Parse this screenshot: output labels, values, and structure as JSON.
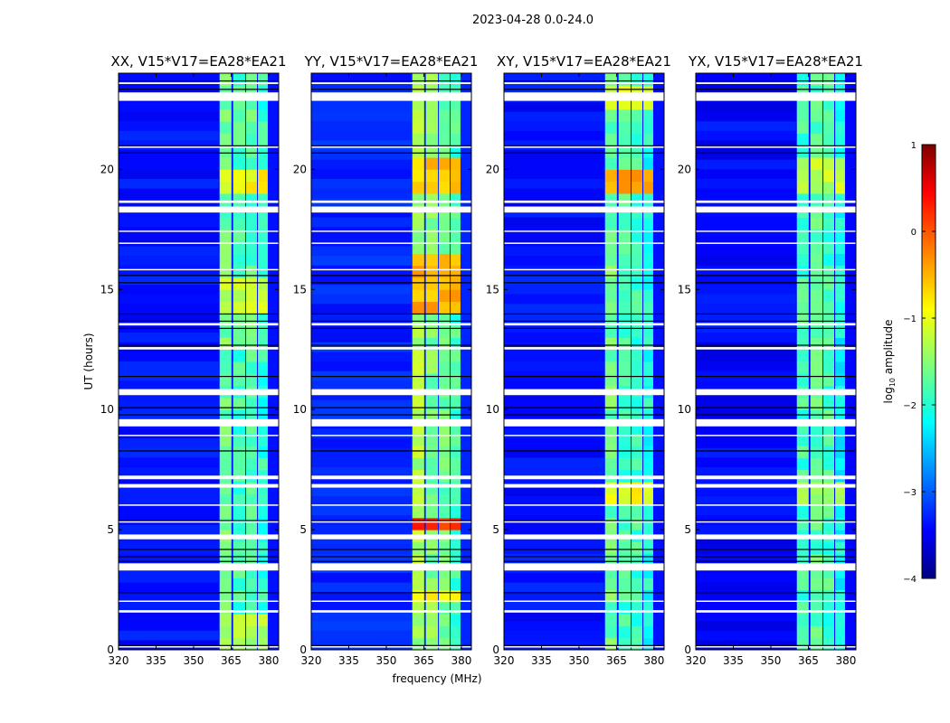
{
  "chart_data": {
    "type": "heatmap",
    "title": "2023-04-28 0.0-24.0",
    "xlabel": "frequency (MHz)",
    "ylabel": "UT (hours)",
    "xlim": [
      320,
      384
    ],
    "ylim": [
      0,
      24
    ],
    "xticks": [
      320,
      335,
      350,
      365,
      380
    ],
    "yticks": [
      0,
      5,
      10,
      15,
      20
    ],
    "panels": [
      {
        "title": "XX, V15*V17=EA28*EA21",
        "background": -3.3,
        "band_levels": [
          -1.6,
          -1.8,
          -1.7,
          -1.9
        ],
        "hot": [
          [
            19.0,
            20.0,
            -0.9
          ],
          [
            13.8,
            15.2,
            -1.2
          ],
          [
            0.0,
            1.2,
            -1.3
          ]
        ]
      },
      {
        "title": "YY, V15*V17=EA28*EA21",
        "background": -3.2,
        "band_levels": [
          -1.3,
          -1.5,
          -1.6,
          -1.8
        ],
        "hot": [
          [
            18.8,
            20.2,
            -0.6
          ],
          [
            13.9,
            16.5,
            -0.5
          ],
          [
            4.9,
            5.2,
            0.2
          ],
          [
            1.8,
            2.4,
            -0.8
          ]
        ]
      },
      {
        "title": "XY, V15*V17=EA28*EA21",
        "background": -3.3,
        "band_levels": [
          -1.6,
          -1.8,
          -1.8,
          -2.0
        ],
        "hot": [
          [
            19.0,
            20.0,
            -0.5
          ],
          [
            5.6,
            6.6,
            -0.9
          ],
          [
            22.2,
            23.5,
            -1.0
          ]
        ]
      },
      {
        "title": "YX, V15*V17=EA28*EA21",
        "background": -3.35,
        "band_levels": [
          -1.8,
          -1.7,
          -1.8,
          -2.1
        ],
        "hot": [
          [
            19.0,
            20.2,
            -1.2
          ],
          [
            5.8,
            6.6,
            -1.3
          ]
        ]
      }
    ],
    "bands_mhz": [
      [
        360.4,
        365.5
      ],
      [
        365.8,
        371.0
      ],
      [
        371.0,
        375.7
      ],
      [
        375.7,
        380.0
      ]
    ],
    "flagged_hours": [
      [
        22.85,
        23.2
      ],
      [
        23.55,
        23.62
      ],
      [
        20.9,
        20.95
      ],
      [
        18.2,
        18.45
      ],
      [
        18.6,
        18.7
      ],
      [
        17.4,
        17.45
      ],
      [
        16.9,
        16.95
      ],
      [
        15.8,
        15.85
      ],
      [
        13.5,
        13.6
      ],
      [
        12.5,
        12.6
      ],
      [
        10.6,
        10.85
      ],
      [
        9.3,
        9.6
      ],
      [
        8.9,
        8.95
      ],
      [
        7.1,
        7.25
      ],
      [
        6.75,
        6.9
      ],
      [
        6.0,
        6.05
      ],
      [
        5.3,
        5.35
      ],
      [
        4.6,
        4.8
      ],
      [
        3.3,
        3.6
      ],
      [
        2.0,
        2.05
      ],
      [
        1.55,
        1.65
      ],
      [
        0.1,
        0.15
      ]
    ],
    "gap_hours": [
      23.7,
      23.35,
      21.0,
      20.7,
      15.6,
      15.3,
      14.0,
      13.7,
      13.4,
      12.7,
      11.4,
      10.1,
      9.8,
      8.3,
      5.4,
      4.2,
      3.9,
      3.7,
      2.4,
      0.2
    ],
    "colorbar": {
      "label": "log",
      "label_sub": "10",
      "label_rest": " amplitude",
      "range": [
        -4,
        1
      ],
      "ticks": [
        "1",
        "0",
        "−1",
        "−2",
        "−3",
        "−4"
      ],
      "colormap": "jet"
    }
  }
}
